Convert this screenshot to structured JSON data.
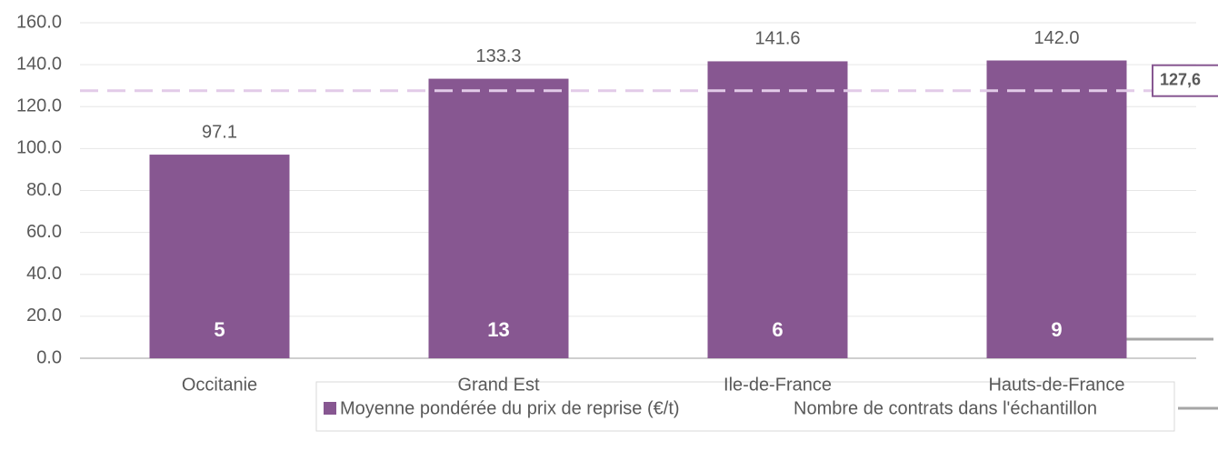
{
  "chart_data": {
    "type": "bar",
    "categories": [
      "Occitanie",
      "Grand Est",
      "Ile-de-France",
      "Hauts-de-France"
    ],
    "series": [
      {
        "name": "Moyenne pondérée du prix de reprise (€/t)",
        "color": "#875791",
        "values": [
          97.1,
          133.3,
          141.6,
          142.0
        ],
        "value_labels": [
          "97.1",
          "133.3",
          "141.6",
          "142.0"
        ]
      },
      {
        "name": "Nombre de contrats dans l'échantillon",
        "color": "#ffffff",
        "values": [
          5,
          13,
          6,
          9
        ]
      }
    ],
    "reference": {
      "value": 127.6,
      "label": "127,6",
      "color": "#e2cbe8"
    },
    "ylim": [
      0,
      160
    ],
    "yticks": [
      {
        "value": 0,
        "label": "0.0"
      },
      {
        "value": 20,
        "label": "20.0"
      },
      {
        "value": 40,
        "label": "40.0"
      },
      {
        "value": 60,
        "label": "60.0"
      },
      {
        "value": 80,
        "label": "80.0"
      },
      {
        "value": 100,
        "label": "100.0"
      },
      {
        "value": 120,
        "label": "120.0"
      },
      {
        "value": 140,
        "label": "140.0"
      },
      {
        "value": 160,
        "label": "160.0"
      }
    ],
    "grid": true
  }
}
